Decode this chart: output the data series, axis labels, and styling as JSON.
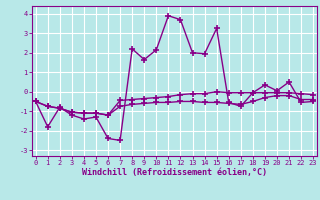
{
  "xlabel": "Windchill (Refroidissement éolien,°C)",
  "x": [
    0,
    1,
    2,
    3,
    4,
    5,
    6,
    7,
    8,
    9,
    10,
    11,
    12,
    13,
    14,
    15,
    16,
    17,
    18,
    19,
    20,
    21,
    22,
    23
  ],
  "y_line1": [
    -0.5,
    -1.8,
    -0.8,
    -1.2,
    -1.4,
    -1.3,
    -2.4,
    -2.5,
    2.2,
    1.65,
    2.15,
    3.9,
    3.7,
    2.0,
    1.95,
    3.25,
    -0.55,
    -0.75,
    -0.05,
    0.35,
    0.05,
    0.5,
    -0.55,
    -0.5
  ],
  "y_line2": [
    -0.5,
    -0.75,
    -0.85,
    -1.05,
    -1.1,
    -1.1,
    -1.2,
    -0.45,
    -0.4,
    -0.35,
    -0.3,
    -0.25,
    -0.15,
    -0.1,
    -0.1,
    0.0,
    -0.05,
    -0.05,
    -0.05,
    -0.05,
    -0.05,
    -0.05,
    -0.1,
    -0.15
  ],
  "y_line3": [
    -0.5,
    -0.75,
    -0.85,
    -1.05,
    -1.1,
    -1.1,
    -1.2,
    -0.75,
    -0.65,
    -0.6,
    -0.55,
    -0.55,
    -0.5,
    -0.5,
    -0.55,
    -0.55,
    -0.6,
    -0.65,
    -0.5,
    -0.3,
    -0.2,
    -0.2,
    -0.4,
    -0.4
  ],
  "ylim": [
    -3.3,
    4.4
  ],
  "yticks": [
    -3,
    -2,
    -1,
    0,
    1,
    2,
    3,
    4
  ],
  "xlim": [
    -0.3,
    23.3
  ],
  "line_color": "#880088",
  "bg_color": "#b8e8e8",
  "grid_color": "#ffffff",
  "marker": "+",
  "markersize": 4,
  "linewidth": 1.0
}
